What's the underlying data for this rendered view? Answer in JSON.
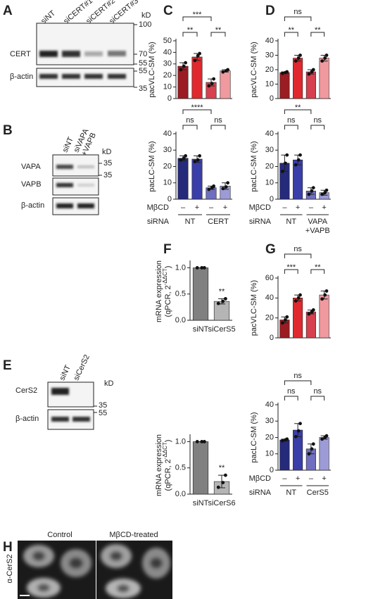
{
  "panel_letters": [
    "A",
    "B",
    "C",
    "D",
    "E",
    "F",
    "G",
    "H"
  ],
  "blots": {
    "A": {
      "lanes": [
        "siNT",
        "siCERT#1",
        "siCERT#2",
        "siCERT#3"
      ],
      "kd": "kD",
      "markers": [
        100,
        70,
        55,
        55,
        35
      ],
      "proteins": [
        "CERT",
        "β-actin"
      ]
    },
    "B": {
      "lanes": [
        [
          "siNT"
        ],
        [
          "siVAPA",
          "+VAPB"
        ]
      ],
      "kd": "kD",
      "markers": [
        35,
        35
      ],
      "proteins": [
        "VAPA",
        "VAPB",
        "β-actin"
      ]
    },
    "E": {
      "lanes": [
        "siNT",
        "siCerS2"
      ],
      "kd": "kD",
      "markers": [
        35,
        55
      ],
      "proteins": [
        "CerS2",
        "β-actin"
      ]
    }
  },
  "microscopy": {
    "conditions": [
      "Control",
      "MβCD-treated"
    ],
    "stain": "α-CerS2"
  },
  "chart_data": [
    {
      "type": "bar",
      "ylabel": "pacVLC-SM (%)",
      "ylim": [
        0,
        50
      ],
      "yticks": [
        0,
        10,
        20,
        30,
        40,
        50
      ],
      "values": [
        28,
        36,
        14,
        24
      ],
      "errors": [
        3,
        3,
        3,
        1
      ],
      "points": [
        [
          25,
          28,
          31
        ],
        [
          33,
          37,
          39
        ],
        [
          11,
          13,
          17
        ],
        [
          23,
          24,
          25
        ]
      ],
      "colors": [
        "#9b1c22",
        "#e0282e",
        "#d6404f",
        "#f0999f"
      ],
      "significance": [
        {
          "pair": [
            0,
            1
          ],
          "label": "**"
        },
        {
          "pair": [
            0,
            2
          ],
          "label": "***"
        },
        {
          "pair": [
            2,
            3
          ],
          "label": "**"
        }
      ]
    },
    {
      "type": "bar",
      "ylabel": "pacLC-SM (%)",
      "ylim": [
        0,
        40
      ],
      "yticks": [
        0,
        10,
        20,
        30,
        40
      ],
      "values": [
        25,
        24.5,
        7,
        8
      ],
      "errors": [
        1.5,
        2,
        1,
        2
      ],
      "points": [
        [
          24,
          25,
          26.5
        ],
        [
          23,
          24,
          26.5
        ],
        [
          6,
          7,
          8
        ],
        [
          6.5,
          7.5,
          10
        ]
      ],
      "colors": [
        "#262a7a",
        "#3a3ea8",
        "#6e6fbf",
        "#9d9bd6"
      ],
      "significance": [
        {
          "pair": [
            0,
            1
          ],
          "label": "ns"
        },
        {
          "pair": [
            0,
            2
          ],
          "label": "****"
        },
        {
          "pair": [
            2,
            3
          ],
          "label": "ns"
        }
      ],
      "treatment_label": "MβCD",
      "treatments": [
        "–",
        "+",
        "–",
        "+"
      ],
      "group_label": "siRNA",
      "groups": [
        [
          "NT"
        ],
        [
          "CERT"
        ]
      ]
    },
    {
      "type": "bar",
      "ylabel": "pacVLC-SM (%)",
      "ylim": [
        0,
        40
      ],
      "yticks": [
        0,
        10,
        20,
        30,
        40
      ],
      "values": [
        18,
        28,
        18.5,
        28
      ],
      "errors": [
        0.5,
        2,
        1.5,
        2
      ],
      "points": [
        [
          17.5,
          18,
          18.5
        ],
        [
          26,
          28,
          30
        ],
        [
          17,
          18.5,
          20
        ],
        [
          26,
          28,
          30
        ]
      ],
      "colors": [
        "#9b1c22",
        "#e0282e",
        "#d6404f",
        "#f0999f"
      ],
      "significance": [
        {
          "pair": [
            0,
            1
          ],
          "label": "**"
        },
        {
          "pair": [
            0,
            2
          ],
          "label": "ns"
        },
        {
          "pair": [
            2,
            3
          ],
          "label": "**"
        }
      ]
    },
    {
      "type": "bar",
      "ylabel": "pacLC-SM (%)",
      "ylim": [
        0,
        40
      ],
      "yticks": [
        0,
        10,
        20,
        30,
        40
      ],
      "values": [
        22,
        24,
        5,
        4
      ],
      "errors": [
        5,
        3,
        2,
        1.5
      ],
      "points": [
        [
          17,
          22,
          27
        ],
        [
          21,
          24,
          27
        ],
        [
          3,
          5,
          7
        ],
        [
          3,
          4,
          5.5
        ]
      ],
      "colors": [
        "#262a7a",
        "#3a3ea8",
        "#6e6fbf",
        "#9d9bd6"
      ],
      "significance": [
        {
          "pair": [
            0,
            1
          ],
          "label": "ns"
        },
        {
          "pair": [
            0,
            2
          ],
          "label": "**"
        },
        {
          "pair": [
            2,
            3
          ],
          "label": "ns"
        }
      ],
      "treatment_label": "MβCD",
      "treatments": [
        "–",
        "+",
        "–",
        "+"
      ],
      "group_label": "siRNA",
      "groups": [
        [
          "NT"
        ],
        [
          "VAPA",
          "+VAPB"
        ]
      ]
    },
    {
      "type": "bar",
      "ylabel": "mRNA expression",
      "ylabel2": {
        "text": "(qPCR, 2",
        "sup": "-ΔΔCT",
        "end": ")"
      },
      "ylim": [
        0,
        1.1
      ],
      "yticks": [
        {
          "value": 0,
          "label": "0.0"
        },
        0.5,
        {
          "value": 1,
          "label": "1.0"
        }
      ],
      "categories": [
        "siNT",
        "siCerS5"
      ],
      "values": [
        1.0,
        0.36
      ],
      "errors": [
        0,
        0.05
      ],
      "points": [
        [
          1.0,
          1.0,
          1.0
        ],
        [
          0.32,
          0.36,
          0.41
        ]
      ],
      "colors": [
        "#808080",
        "#b5b5b5"
      ],
      "significance": [
        {
          "pair": [
            1
          ],
          "label": "**"
        }
      ]
    },
    {
      "type": "bar",
      "ylabel": "mRNA expression",
      "ylabel2": {
        "text": "(qPCR, 2",
        "sup": "-ΔΔCT",
        "end": ")"
      },
      "ylim": [
        0,
        1.1
      ],
      "yticks": [
        {
          "value": 0,
          "label": "0.0"
        },
        0.5,
        {
          "value": 1,
          "label": "1.0"
        }
      ],
      "categories": [
        "siNT",
        "siCerS6"
      ],
      "values": [
        1.0,
        0.24
      ],
      "errors": [
        0,
        0.12
      ],
      "points": [
        [
          1.0,
          1.0,
          1.0
        ],
        [
          0.13,
          0.22,
          0.36
        ]
      ],
      "colors": [
        "#808080",
        "#b5b5b5"
      ],
      "significance": [
        {
          "pair": [
            1
          ],
          "label": "**"
        }
      ]
    },
    {
      "type": "bar",
      "ylabel": "pacVLC-SM (%)",
      "ylim": [
        0,
        60
      ],
      "yticks": [
        0,
        20,
        40,
        60
      ],
      "values": [
        18,
        40,
        26,
        43
      ],
      "errors": [
        3,
        3,
        2,
        4
      ],
      "points": [
        [
          15,
          18,
          21
        ],
        [
          37,
          40,
          43
        ],
        [
          24,
          26,
          28
        ],
        [
          39,
          43,
          47
        ]
      ],
      "colors": [
        "#9b1c22",
        "#e0282e",
        "#d6404f",
        "#f0999f"
      ],
      "significance": [
        {
          "pair": [
            0,
            1
          ],
          "label": "***"
        },
        {
          "pair": [
            0,
            2
          ],
          "label": "ns"
        },
        {
          "pair": [
            2,
            3
          ],
          "label": "**"
        }
      ]
    },
    {
      "type": "bar",
      "ylabel": "pacLC-SM (%)",
      "ylim": [
        0,
        40
      ],
      "yticks": [
        0,
        10,
        20,
        30,
        40
      ],
      "values": [
        18.5,
        24.5,
        13,
        20
      ],
      "errors": [
        0.5,
        4,
        3,
        1
      ],
      "points": [
        [
          18,
          18.5,
          19
        ],
        [
          20.5,
          24,
          28.5
        ],
        [
          10,
          13,
          16
        ],
        [
          19,
          20,
          21
        ]
      ],
      "colors": [
        "#262a7a",
        "#3a3ea8",
        "#6e6fbf",
        "#9d9bd6"
      ],
      "significance": [
        {
          "pair": [
            0,
            1
          ],
          "label": "ns"
        },
        {
          "pair": [
            0,
            2
          ],
          "label": "ns"
        },
        {
          "pair": [
            2,
            3
          ],
          "label": "ns"
        }
      ],
      "treatment_label": "MβCD",
      "treatments": [
        "–",
        "+",
        "–",
        "+"
      ],
      "group_label": "siRNA",
      "groups": [
        [
          "NT"
        ],
        [
          "CerS5"
        ]
      ]
    }
  ]
}
